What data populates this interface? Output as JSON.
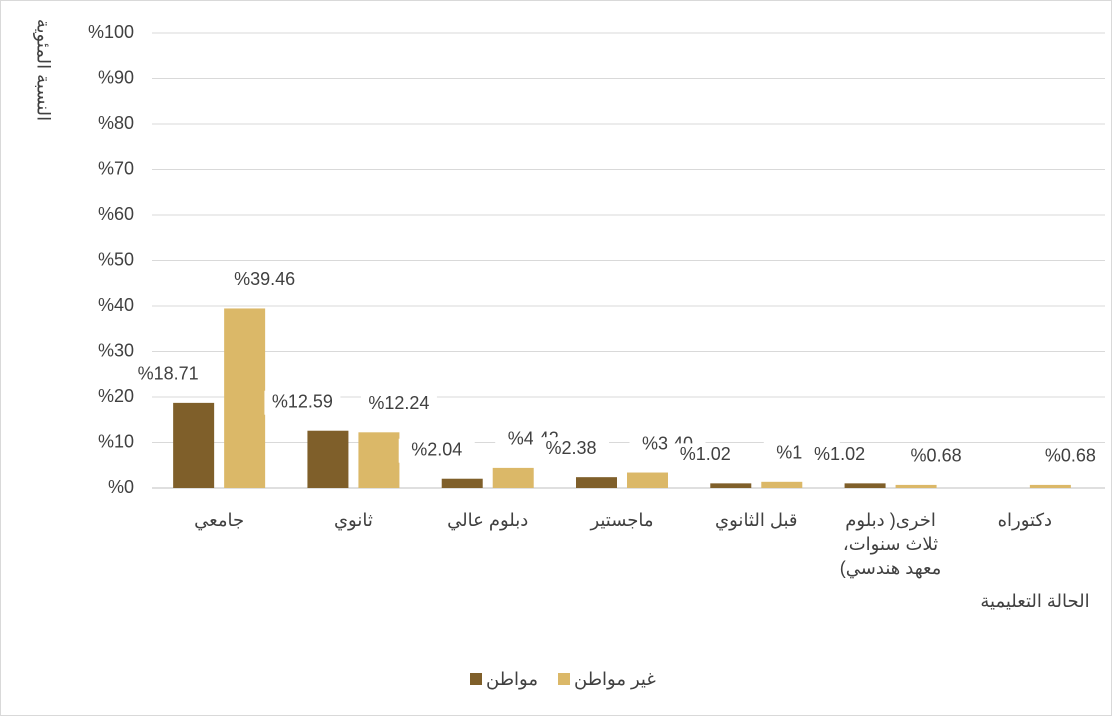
{
  "chart_data": {
    "type": "bar",
    "y_label": "النسبة المئوية",
    "x_label": "الحالة التعليمية",
    "categories": [
      "جامعي",
      "ثانوي",
      "دبلوم عالي",
      "ماجستير",
      "قبل الثانوي",
      "اخرى( دبلوم ثلاث سنوات، معهد هندسي)",
      "دكتوراه"
    ],
    "series": [
      {
        "name": "مواطن",
        "color": "#7f5f2a",
        "values": [
          18.71,
          12.59,
          2.04,
          2.38,
          1.02,
          1.02,
          null
        ],
        "value_labels": [
          "%18.71",
          "%12.59",
          "%2.04",
          "%2.38",
          "%1.02",
          "%1.02",
          null
        ]
      },
      {
        "name": "غير مواطن",
        "color": "#dbb868",
        "values": [
          39.46,
          12.24,
          4.42,
          3.4,
          1.36,
          0.68,
          0.68
        ],
        "value_labels": [
          "%39.46",
          "%12.24",
          "%4.42",
          "%3.40",
          "%1.36",
          "%0.68",
          "%0.68"
        ]
      }
    ],
    "ylim": [
      0,
      100
    ],
    "yticks": [
      {
        "value": 0,
        "label": "%0"
      },
      {
        "value": 10,
        "label": "%10"
      },
      {
        "value": 20,
        "label": "%20"
      },
      {
        "value": 30,
        "label": "%30"
      },
      {
        "value": 40,
        "label": "%40"
      },
      {
        "value": 50,
        "label": "%50"
      },
      {
        "value": 60,
        "label": "%60"
      },
      {
        "value": 70,
        "label": "%70"
      },
      {
        "value": 80,
        "label": "%80"
      },
      {
        "value": 90,
        "label": "%90"
      },
      {
        "value": 100,
        "label": "%100"
      }
    ],
    "grid": true
  }
}
